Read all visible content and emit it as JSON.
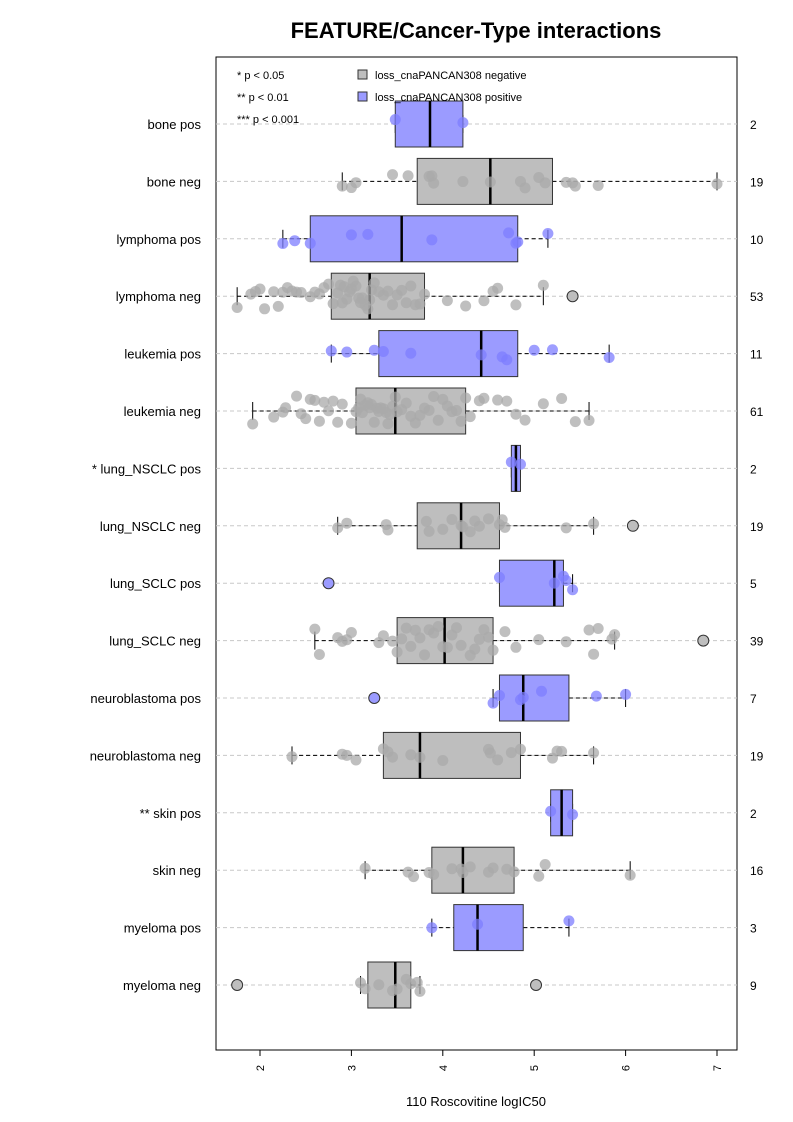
{
  "chart_data": {
    "type": "boxplot",
    "title": "FEATURE/Cancer-Type interactions",
    "xlabel": "110 Roscovitine logIC50",
    "xlim": [
      1.5,
      7.25
    ],
    "xticks": [
      2,
      3,
      4,
      5,
      6,
      7
    ],
    "xtick_labels": [
      "2",
      "3",
      "4",
      "5",
      "6",
      "7"
    ],
    "grid": "horizontal dashed",
    "legend": {
      "placement": "top",
      "significance": [
        "* p < 0.05",
        "** p < 0.01",
        "*** p < 0.001"
      ],
      "groups": [
        {
          "label": "loss_cnaPANCAN308 negative",
          "color": "#bebebe"
        },
        {
          "label": "loss_cnaPANCAN308 positive",
          "color": "#9b9bff"
        }
      ]
    },
    "colors": {
      "negative": "#bebebe",
      "positive": "#9b9bff",
      "point_negative": "#aaaaaa",
      "point_positive": "#7d7dff"
    },
    "categories": [
      {
        "label": "bone pos",
        "group": "positive",
        "n": "2",
        "min": 3.48,
        "q1": 3.48,
        "median": 3.86,
        "q3": 4.22,
        "max": 4.22,
        "points": [
          3.48,
          4.22
        ],
        "outliers": []
      },
      {
        "label": "bone neg",
        "group": "negative",
        "n": "19",
        "min": 2.9,
        "q1": 3.72,
        "median": 4.52,
        "q3": 5.2,
        "max": 7.0,
        "points": [
          2.9,
          3.0,
          3.05,
          3.45,
          3.62,
          3.85,
          3.88,
          3.9,
          4.22,
          4.52,
          4.85,
          4.9,
          5.05,
          5.12,
          5.35,
          5.42,
          5.45,
          5.7,
          7.0
        ],
        "outliers": []
      },
      {
        "label": "lymphoma pos",
        "group": "positive",
        "n": "10",
        "min": 2.25,
        "q1": 2.55,
        "median": 3.55,
        "q3": 4.82,
        "max": 5.15,
        "points": [
          2.25,
          2.38,
          2.55,
          3.0,
          3.18,
          3.88,
          4.72,
          4.8,
          4.82,
          5.15
        ],
        "outliers": []
      },
      {
        "label": "lymphoma neg",
        "group": "negative",
        "n": "53",
        "min": 1.75,
        "q1": 2.78,
        "median": 3.2,
        "q3": 3.8,
        "max": 5.1,
        "points": [
          1.75,
          1.9,
          1.95,
          2.0,
          2.05,
          2.15,
          2.2,
          2.25,
          2.3,
          2.35,
          2.4,
          2.45,
          2.55,
          2.6,
          2.65,
          2.7,
          2.75,
          2.8,
          2.85,
          2.88,
          2.9,
          2.92,
          2.95,
          2.98,
          3.0,
          3.02,
          3.05,
          3.08,
          3.1,
          3.12,
          3.15,
          3.18,
          3.2,
          3.22,
          3.25,
          3.3,
          3.35,
          3.4,
          3.45,
          3.5,
          3.55,
          3.6,
          3.65,
          3.7,
          3.75,
          3.8,
          4.05,
          4.25,
          4.45,
          4.55,
          4.6,
          4.8,
          5.1
        ],
        "outliers": [
          5.42
        ]
      },
      {
        "label": "leukemia pos",
        "group": "positive",
        "n": "11",
        "min": 2.78,
        "q1": 3.3,
        "median": 4.42,
        "q3": 4.82,
        "max": 5.82,
        "points": [
          2.78,
          2.95,
          3.25,
          3.35,
          3.65,
          4.42,
          4.65,
          4.7,
          5.0,
          5.2,
          5.82
        ],
        "outliers": []
      },
      {
        "label": "leukemia neg",
        "group": "negative",
        "n": "61",
        "min": 1.92,
        "q1": 3.05,
        "median": 3.48,
        "q3": 4.25,
        "max": 5.6,
        "points": [
          1.92,
          2.15,
          2.25,
          2.28,
          2.4,
          2.45,
          2.5,
          2.55,
          2.6,
          2.65,
          2.7,
          2.75,
          2.8,
          2.85,
          2.9,
          3.0,
          3.05,
          3.08,
          3.1,
          3.12,
          3.15,
          3.18,
          3.2,
          3.22,
          3.25,
          3.28,
          3.3,
          3.32,
          3.35,
          3.38,
          3.4,
          3.42,
          3.45,
          3.48,
          3.5,
          3.55,
          3.6,
          3.65,
          3.7,
          3.75,
          3.8,
          3.85,
          3.9,
          3.95,
          4.0,
          4.05,
          4.1,
          4.15,
          4.2,
          4.25,
          4.3,
          4.4,
          4.45,
          4.6,
          4.7,
          4.8,
          4.9,
          5.1,
          5.3,
          5.45,
          5.6
        ],
        "outliers": []
      },
      {
        "label": "* lung_NSCLC pos",
        "group": "positive",
        "n": "2",
        "min": 4.75,
        "q1": 4.75,
        "median": 4.8,
        "q3": 4.85,
        "max": 4.85,
        "points": [
          4.75,
          4.85
        ],
        "outliers": []
      },
      {
        "label": "lung_NSCLC neg",
        "group": "negative",
        "n": "19",
        "min": 2.85,
        "q1": 3.72,
        "median": 4.2,
        "q3": 4.62,
        "max": 5.65,
        "points": [
          2.85,
          2.95,
          3.38,
          3.4,
          3.82,
          3.85,
          4.0,
          4.1,
          4.2,
          4.22,
          4.3,
          4.35,
          4.4,
          4.5,
          4.62,
          4.65,
          4.68,
          5.35,
          5.65
        ],
        "outliers": [
          6.08
        ]
      },
      {
        "label": "lung_SCLC pos",
        "group": "positive",
        "n": "5",
        "min": 4.62,
        "q1": 4.62,
        "median": 5.22,
        "q3": 5.32,
        "max": 5.42,
        "points": [
          4.62,
          5.22,
          5.32,
          5.35,
          5.42
        ],
        "outliers": [
          2.75
        ]
      },
      {
        "label": "lung_SCLC neg",
        "group": "negative",
        "n": "39",
        "min": 2.6,
        "q1": 3.5,
        "median": 4.02,
        "q3": 4.55,
        "max": 5.88,
        "points": [
          2.6,
          2.65,
          2.85,
          2.9,
          2.95,
          3.0,
          3.3,
          3.35,
          3.45,
          3.5,
          3.55,
          3.6,
          3.65,
          3.7,
          3.75,
          3.8,
          3.85,
          3.9,
          3.95,
          4.0,
          4.05,
          4.1,
          4.15,
          4.2,
          4.3,
          4.35,
          4.4,
          4.45,
          4.5,
          4.55,
          4.68,
          4.8,
          5.05,
          5.35,
          5.6,
          5.65,
          5.7,
          5.85,
          5.88
        ],
        "outliers": [
          6.85
        ]
      },
      {
        "label": "neuroblastoma pos",
        "group": "positive",
        "n": "7",
        "min": 4.55,
        "q1": 4.62,
        "median": 4.88,
        "q3": 5.38,
        "max": 6.0,
        "points": [
          4.55,
          4.62,
          4.85,
          4.88,
          5.08,
          5.68,
          6.0
        ],
        "outliers": [
          3.25
        ]
      },
      {
        "label": "neuroblastoma neg",
        "group": "negative",
        "n": "19",
        "min": 2.35,
        "q1": 3.35,
        "median": 3.75,
        "q3": 4.85,
        "max": 5.65,
        "points": [
          2.35,
          2.9,
          2.95,
          3.05,
          3.35,
          3.4,
          3.45,
          3.65,
          3.75,
          4.0,
          4.5,
          4.52,
          4.6,
          4.75,
          4.85,
          5.2,
          5.25,
          5.3,
          5.65
        ],
        "outliers": []
      },
      {
        "label": "** skin pos",
        "group": "positive",
        "n": "2",
        "min": 5.18,
        "q1": 5.18,
        "median": 5.3,
        "q3": 5.42,
        "max": 5.42,
        "points": [
          5.18,
          5.42
        ],
        "outliers": []
      },
      {
        "label": "skin neg",
        "group": "negative",
        "n": "16",
        "min": 3.15,
        "q1": 3.88,
        "median": 4.22,
        "q3": 4.78,
        "max": 6.05,
        "points": [
          3.15,
          3.62,
          3.68,
          3.85,
          3.9,
          4.1,
          4.2,
          4.22,
          4.3,
          4.5,
          4.55,
          4.7,
          4.78,
          5.05,
          5.12,
          6.05
        ],
        "outliers": []
      },
      {
        "label": "myeloma pos",
        "group": "positive",
        "n": "3",
        "min": 3.88,
        "q1": 4.12,
        "median": 4.38,
        "q3": 4.88,
        "max": 5.38,
        "points": [
          3.88,
          4.38,
          5.38
        ],
        "outliers": []
      },
      {
        "label": "myeloma neg",
        "group": "negative",
        "n": "9",
        "min": 3.1,
        "q1": 3.18,
        "median": 3.48,
        "q3": 3.65,
        "max": 3.75,
        "points": [
          3.1,
          3.15,
          3.3,
          3.45,
          3.5,
          3.6,
          3.65,
          3.72,
          3.75
        ],
        "outliers": [
          1.75,
          5.02
        ]
      }
    ]
  }
}
